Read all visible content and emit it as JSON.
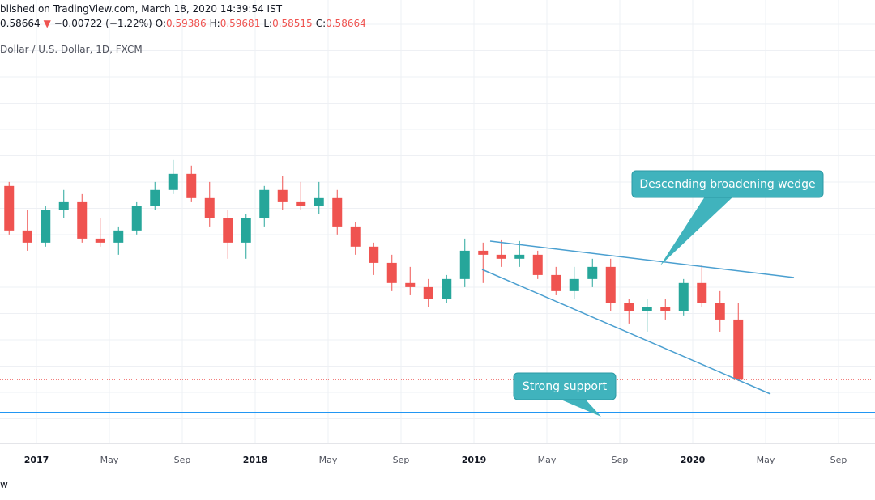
{
  "header": {
    "published": "blished on TradingView.com, March 18, 2020 14:39:54 IST",
    "last": 0.58664,
    "arrow": "▼",
    "change": "−0.00722 (−1.22%)",
    "o_label": "O:",
    "o": 0.59386,
    "h_label": "H:",
    "h": 0.59681,
    "l_label": "L:",
    "l": 0.58515,
    "c_label": "C:",
    "c": 0.58664,
    "symbol": "Dollar / U.S. Dollar, 1D, FXCM"
  },
  "footer": "w",
  "chart_data": {
    "type": "candlestick",
    "annotations": [
      "Descending broadening wedge",
      "Strong support"
    ],
    "x": [
      "2016-11",
      "2016-12",
      "2017-01",
      "2017-02",
      "2017-03",
      "2017-04",
      "2017-05",
      "2017-06",
      "2017-07",
      "2017-08",
      "2017-09",
      "2017-10",
      "2017-11",
      "2017-12",
      "2018-01",
      "2018-02",
      "2018-03",
      "2018-04",
      "2018-05",
      "2018-06",
      "2018-07",
      "2018-08",
      "2018-09",
      "2018-10",
      "2018-11",
      "2018-12",
      "2019-01",
      "2019-02",
      "2019-03",
      "2019-04",
      "2019-05",
      "2019-06",
      "2019-07",
      "2019-08",
      "2019-09",
      "2019-10",
      "2019-11",
      "2019-12",
      "2020-01",
      "2020-02",
      "2020-03"
    ],
    "open": [
      0.7894,
      0.7428,
      0.7301,
      0.764,
      0.7724,
      0.7343,
      0.7301,
      0.7428,
      0.7682,
      0.7852,
      0.8021,
      0.7767,
      0.7555,
      0.7301,
      0.7555,
      0.7852,
      0.7724,
      0.7682,
      0.7767,
      0.747,
      0.7259,
      0.7089,
      0.6878,
      0.6835,
      0.6708,
      0.692,
      0.7216,
      0.7174,
      0.7132,
      0.7174,
      0.6962,
      0.6793,
      0.692,
      0.7047,
      0.6666,
      0.6581,
      0.6624,
      0.6581,
      0.6878,
      0.6666,
      0.6496
    ],
    "high": [
      0.7936,
      0.764,
      0.7682,
      0.7852,
      0.7809,
      0.7555,
      0.747,
      0.7724,
      0.7936,
      0.8165,
      0.8106,
      0.7936,
      0.764,
      0.7597,
      0.7894,
      0.7996,
      0.7936,
      0.7936,
      0.7852,
      0.7513,
      0.7301,
      0.7174,
      0.7047,
      0.692,
      0.6962,
      0.7343,
      0.7301,
      0.7326,
      0.7318,
      0.7216,
      0.7047,
      0.7047,
      0.7132,
      0.7132,
      0.6708,
      0.6708,
      0.6708,
      0.692,
      0.7064,
      0.6793,
      0.6666
    ],
    "low": [
      0.7386,
      0.7216,
      0.7259,
      0.7555,
      0.7301,
      0.7259,
      0.7174,
      0.7386,
      0.764,
      0.7809,
      0.7724,
      0.747,
      0.7132,
      0.7132,
      0.747,
      0.764,
      0.764,
      0.7597,
      0.7386,
      0.7174,
      0.6962,
      0.6793,
      0.675,
      0.6624,
      0.6666,
      0.6835,
      0.6878,
      0.7047,
      0.7047,
      0.692,
      0.675,
      0.6708,
      0.6835,
      0.6581,
      0.6454,
      0.6369,
      0.6496,
      0.6539,
      0.6624,
      0.6369,
      0.58515
    ],
    "close": [
      0.7428,
      0.7301,
      0.764,
      0.7724,
      0.7343,
      0.7301,
      0.7428,
      0.7682,
      0.7852,
      0.8021,
      0.7767,
      0.7555,
      0.7301,
      0.7555,
      0.7852,
      0.7724,
      0.7682,
      0.7767,
      0.747,
      0.7259,
      0.7089,
      0.6878,
      0.6835,
      0.6708,
      0.692,
      0.7216,
      0.7174,
      0.7132,
      0.7174,
      0.6962,
      0.6793,
      0.692,
      0.7047,
      0.6666,
      0.6581,
      0.6624,
      0.6581,
      0.6878,
      0.6666,
      0.6496,
      0.58664
    ],
    "up_color": "#26a69a",
    "down_color": "#ef5350",
    "xlim": [
      "2016-11",
      "2020-11"
    ],
    "ylim": [
      0.52,
      0.984
    ],
    "xticks": [
      {
        "value": "2017-01",
        "label": "2017"
      },
      {
        "value": "2017-05",
        "label": "May"
      },
      {
        "value": "2017-09",
        "label": "Sep"
      },
      {
        "value": "2018-01",
        "label": "2018"
      },
      {
        "value": "2018-05",
        "label": "May"
      },
      {
        "value": "2018-09",
        "label": "Sep"
      },
      {
        "value": "2019-01",
        "label": "2019"
      },
      {
        "value": "2019-05",
        "label": "May"
      },
      {
        "value": "2019-09",
        "label": "Sep"
      },
      {
        "value": "2020-01",
        "label": "2020"
      },
      {
        "value": "2020-05",
        "label": "May"
      },
      {
        "value": "2020-09",
        "label": "Sep"
      }
    ],
    "grid": true
  }
}
